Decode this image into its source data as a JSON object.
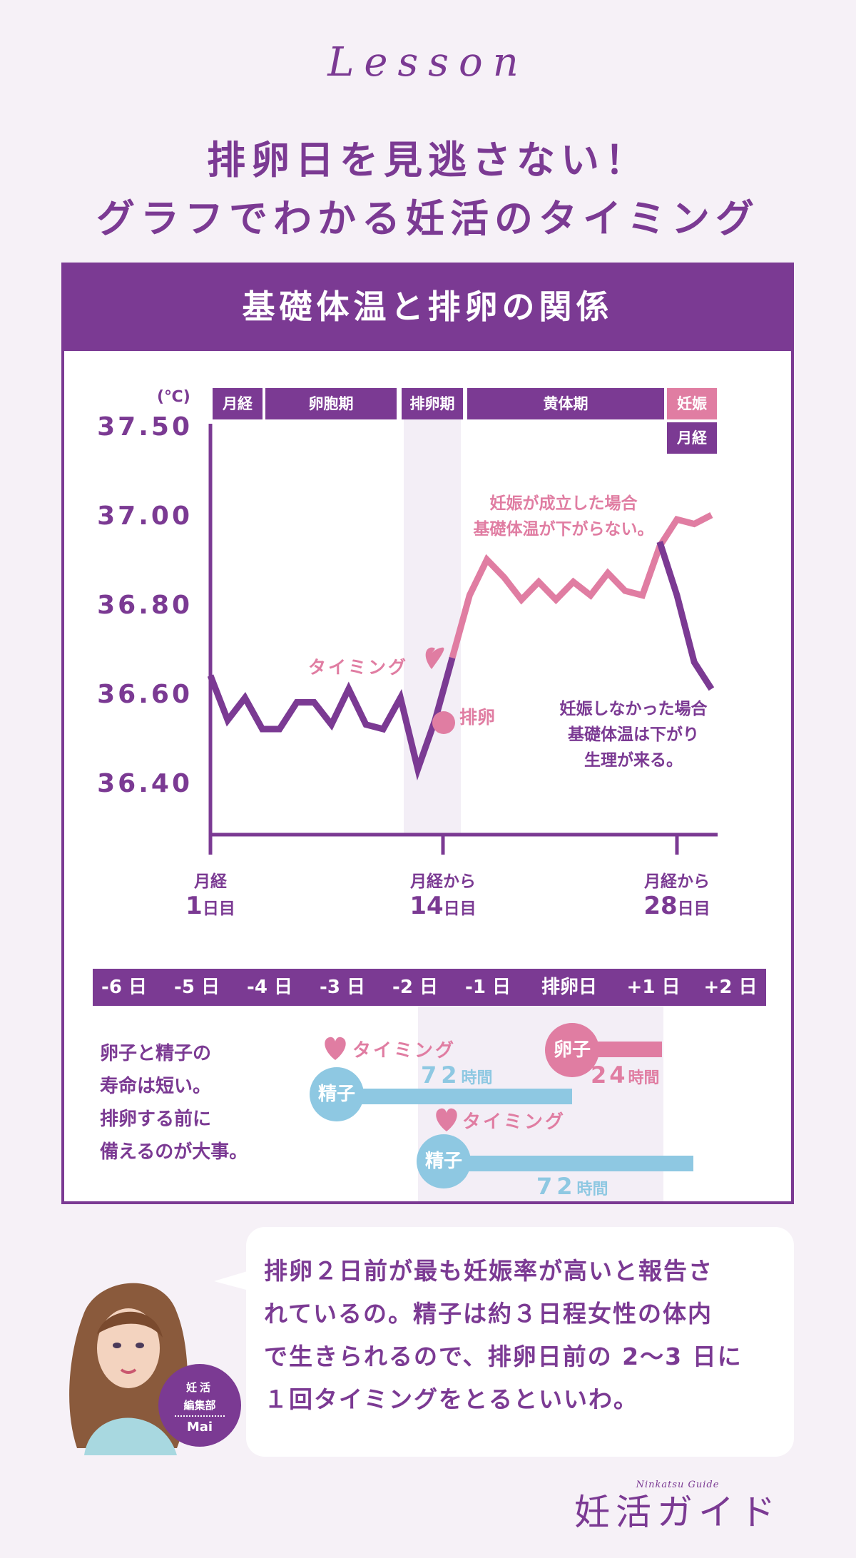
{
  "lesson": "Lesson",
  "headline": [
    "排卵日を見逃さない！",
    "グラフでわかる妊活のタイミング"
  ],
  "panel_title": "基礎体温と排卵の関係",
  "colors": {
    "purple": "#7b3a93",
    "pink": "#e07da2",
    "blue": "#8ec8e2",
    "bg": "#f6f1f7",
    "band": "#f3eef6"
  },
  "chart_data": {
    "type": "line",
    "title": "基礎体温と排卵の関係",
    "ylabel": "(℃)",
    "yticks": [
      "37.50",
      "37.00",
      "36.80",
      "36.60",
      "36.40"
    ],
    "phases": [
      "月経",
      "卵胞期",
      "排卵期",
      "黄体期",
      "妊娠",
      "月経"
    ],
    "x_labels": [
      {
        "top": "月経",
        "num": "1",
        "unit": "日目"
      },
      {
        "top": "月経から",
        "num": "14",
        "unit": "日目"
      },
      {
        "top": "月経から",
        "num": "28",
        "unit": "日目"
      }
    ],
    "series": [
      {
        "values": [
          [
            1,
            36.64
          ],
          [
            2,
            36.54
          ],
          [
            3,
            36.59
          ],
          [
            4,
            36.52
          ],
          [
            5,
            36.52
          ],
          [
            6,
            36.58
          ],
          [
            7,
            36.58
          ],
          [
            8,
            36.53
          ],
          [
            9,
            36.61
          ],
          [
            10,
            36.53
          ],
          [
            11,
            36.52
          ],
          [
            12,
            36.59
          ],
          [
            13,
            36.43
          ],
          [
            14,
            36.54
          ],
          [
            15,
            36.68
          ]
        ]
      },
      {
        "values": [
          [
            15,
            36.68
          ],
          [
            16,
            36.82
          ],
          [
            17,
            36.9
          ],
          [
            18,
            36.86
          ],
          [
            19,
            36.81
          ],
          [
            20,
            36.85
          ],
          [
            21,
            36.81
          ],
          [
            22,
            36.85
          ],
          [
            23,
            36.82
          ],
          [
            24,
            36.87
          ],
          [
            25,
            36.83
          ],
          [
            26,
            36.82
          ],
          [
            27,
            36.93
          ],
          [
            28,
            36.99
          ],
          [
            29,
            36.98
          ],
          [
            30,
            37.0
          ]
        ]
      },
      {
        "values": [
          [
            27,
            36.94
          ],
          [
            28,
            36.82
          ],
          [
            29,
            36.67
          ],
          [
            30,
            36.61
          ]
        ]
      }
    ],
    "annotations": {
      "timing": "タイミング",
      "ovulation": "排卵",
      "pregnant": [
        "妊娠が成立した場合",
        "基礎体温が下がらない。"
      ],
      "not_pregnant": [
        "妊娠しなかった場合",
        "基礎体温は下がり",
        "生理が来る。"
      ]
    }
  },
  "days": [
    "-6 日",
    "-5 日",
    "-4 日",
    "-3 日",
    "-2 日",
    "-1 日",
    "排卵日",
    "+1 日",
    "+2 日"
  ],
  "lifespan": {
    "note": [
      "卵子と精子の",
      "寿命は短い。",
      "排卵する前に",
      "備えるのが大事。"
    ],
    "timing": "タイミング",
    "sperm": "精子",
    "egg": "卵子",
    "sperm_hours": "72",
    "egg_hours": "24",
    "hours_unit": "時間"
  },
  "speech": [
    "排卵２日前が最も妊娠率が高いと報告さ",
    "れているの。精子は約３日程女性の体内",
    "で生きられるので、排卵日前の 2〜3 日に",
    "１回タイミングをとるといいわ。"
  ],
  "author": {
    "line1": "妊活",
    "line2": "編集部",
    "name": "Mai"
  },
  "brand": {
    "name": "妊活ガイド",
    "sub": "Ninkatsu Guide"
  }
}
